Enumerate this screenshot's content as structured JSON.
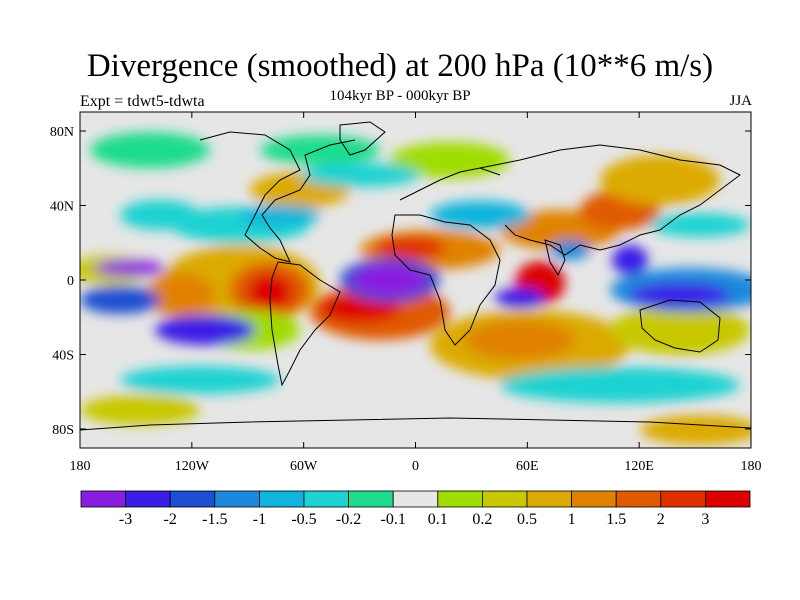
{
  "title": "Divergence (smoothed) at 200 hPa (10**6 m/s)",
  "subtitle": "104kyr BP - 000kyr BP",
  "experiment_label": "Expt = tdwt5-tdwta",
  "season_label": "JJA",
  "map": {
    "y_ticks": [
      "80N",
      "40N",
      "0",
      "40S",
      "80S"
    ],
    "x_ticks": [
      "180",
      "120W",
      "60W",
      "0",
      "60E",
      "120E",
      "180"
    ],
    "background_color": "#e6e6e6"
  },
  "colorbar": {
    "colors": [
      "#8a1ee0",
      "#3a1ee6",
      "#1e4fd2",
      "#1e88dc",
      "#10b4dc",
      "#1cd2d2",
      "#1edc8c",
      "#e6e6e6",
      "#a0dc00",
      "#c8c800",
      "#dcaa00",
      "#e08200",
      "#e05a00",
      "#e03000",
      "#dc0000"
    ],
    "labels": [
      "-3",
      "-2",
      "-1.5",
      "-1",
      "-0.5",
      "-0.2",
      "-0.1",
      "0.1",
      "0.2",
      "0.5",
      "1",
      "1.5",
      "2",
      "3"
    ]
  }
}
